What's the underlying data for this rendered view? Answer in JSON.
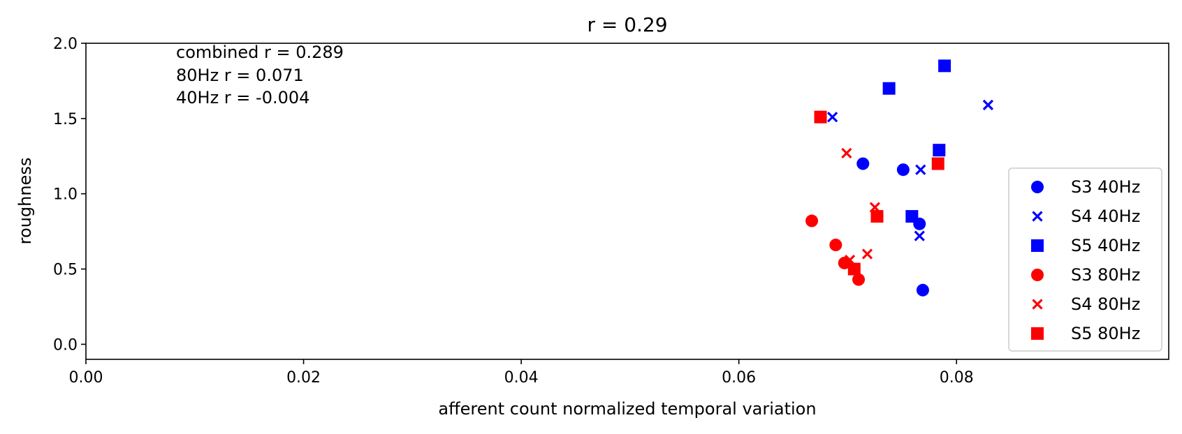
{
  "chart_data": {
    "type": "scatter",
    "title": "r = 0.29",
    "xlabel": "afferent count normalized temporal variation",
    "ylabel": "roughness",
    "xlim": [
      0.0,
      0.0995
    ],
    "ylim": [
      -0.1,
      2.0
    ],
    "xticks": [
      0.0,
      0.02,
      0.04,
      0.06,
      0.08
    ],
    "xtick_labels": [
      "0.00",
      "0.02",
      "0.04",
      "0.06",
      "0.08"
    ],
    "yticks": [
      0.0,
      0.5,
      1.0,
      1.5,
      2.0
    ],
    "ytick_labels": [
      "0.0",
      "0.5",
      "1.0",
      "1.5",
      "2.0"
    ],
    "grid": false,
    "legend_position": "lower-right",
    "annotations": [
      "combined r = 0.289",
      "80Hz r = 0.071",
      "40Hz r = -0.004"
    ],
    "series": [
      {
        "name": "S3 40Hz",
        "color": "#0000ff",
        "marker": "circle",
        "points": [
          [
            0.0714,
            1.2
          ],
          [
            0.0751,
            1.16
          ],
          [
            0.0766,
            0.8
          ],
          [
            0.0769,
            0.36
          ]
        ]
      },
      {
        "name": "S4 40Hz",
        "color": "#0000ff",
        "marker": "x",
        "points": [
          [
            0.0686,
            1.51
          ],
          [
            0.0767,
            1.16
          ],
          [
            0.0766,
            0.72
          ],
          [
            0.0829,
            1.59
          ]
        ]
      },
      {
        "name": "S5 40Hz",
        "color": "#0000ff",
        "marker": "square",
        "points": [
          [
            0.0738,
            1.7
          ],
          [
            0.0789,
            1.85
          ],
          [
            0.0784,
            1.29
          ],
          [
            0.0759,
            0.85
          ]
        ]
      },
      {
        "name": "S3 80Hz",
        "color": "#ff0000",
        "marker": "circle",
        "points": [
          [
            0.0667,
            0.82
          ],
          [
            0.0689,
            0.66
          ],
          [
            0.0697,
            0.54
          ],
          [
            0.071,
            0.43
          ]
        ]
      },
      {
        "name": "S4 80Hz",
        "color": "#ff0000",
        "marker": "x",
        "points": [
          [
            0.0699,
            1.27
          ],
          [
            0.0725,
            0.91
          ],
          [
            0.0718,
            0.6
          ],
          [
            0.0702,
            0.56
          ]
        ]
      },
      {
        "name": "S5 80Hz",
        "color": "#ff0000",
        "marker": "square",
        "points": [
          [
            0.0675,
            1.51
          ],
          [
            0.0783,
            1.2
          ],
          [
            0.0727,
            0.85
          ],
          [
            0.0706,
            0.5
          ]
        ]
      }
    ]
  }
}
